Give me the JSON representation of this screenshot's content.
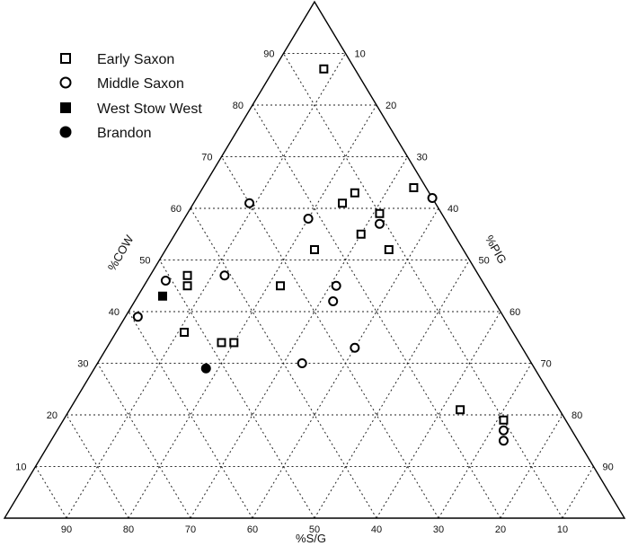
{
  "chart_data": {
    "type": "scatter",
    "subtype": "ternary",
    "axes": {
      "left": {
        "label": "%COW",
        "ticks": [
          10,
          20,
          30,
          40,
          50,
          60,
          70,
          80,
          90
        ]
      },
      "right": {
        "label": "%PIG",
        "ticks": [
          10,
          20,
          30,
          40,
          50,
          60,
          70,
          80,
          90
        ]
      },
      "bottom": {
        "label": "%S/G",
        "ticks": [
          90,
          80,
          70,
          60,
          50,
          40,
          30,
          20,
          10
        ]
      }
    },
    "grid": true,
    "legend_position": "top-left",
    "series": [
      {
        "name": "Early Saxon",
        "marker": "open-square",
        "points": [
          {
            "cow": 87,
            "pig": 8,
            "sg": 5
          },
          {
            "cow": 63,
            "pig": 25,
            "sg": 12
          },
          {
            "cow": 64,
            "pig": 34,
            "sg": 2
          },
          {
            "cow": 61,
            "pig": 24,
            "sg": 15
          },
          {
            "cow": 59,
            "pig": 31,
            "sg": 10
          },
          {
            "cow": 55,
            "pig": 30,
            "sg": 15
          },
          {
            "cow": 52,
            "pig": 24,
            "sg": 24
          },
          {
            "cow": 52,
            "pig": 36,
            "sg": 12
          },
          {
            "cow": 47,
            "pig": 6,
            "sg": 47
          },
          {
            "cow": 45,
            "pig": 7,
            "sg": 48
          },
          {
            "cow": 45,
            "pig": 22,
            "sg": 33
          },
          {
            "cow": 36,
            "pig": 11,
            "sg": 53
          },
          {
            "cow": 34,
            "pig": 18,
            "sg": 48
          },
          {
            "cow": 34,
            "pig": 20,
            "sg": 46
          },
          {
            "cow": 21,
            "pig": 63,
            "sg": 16
          },
          {
            "cow": 19,
            "pig": 71,
            "sg": 10
          }
        ]
      },
      {
        "name": "Middle Saxon",
        "marker": "open-circle",
        "points": [
          {
            "cow": 62,
            "pig": 38,
            "sg": 0
          },
          {
            "cow": 61,
            "pig": 9,
            "sg": 30
          },
          {
            "cow": 58,
            "pig": 20,
            "sg": 22
          },
          {
            "cow": 57,
            "pig": 32,
            "sg": 11
          },
          {
            "cow": 47,
            "pig": 12,
            "sg": 41
          },
          {
            "cow": 46,
            "pig": 3,
            "sg": 51
          },
          {
            "cow": 45,
            "pig": 31,
            "sg": 24
          },
          {
            "cow": 42,
            "pig": 32,
            "sg": 26
          },
          {
            "cow": 39,
            "pig": 2,
            "sg": 59
          },
          {
            "cow": 33,
            "pig": 40,
            "sg": 27
          },
          {
            "cow": 30,
            "pig": 33,
            "sg": 37
          },
          {
            "cow": 17,
            "pig": 72,
            "sg": 11
          },
          {
            "cow": 15,
            "pig": 73,
            "sg": 12
          }
        ]
      },
      {
        "name": "West Stow West",
        "marker": "filled-square",
        "points": [
          {
            "cow": 43,
            "pig": 4,
            "sg": 53
          }
        ]
      },
      {
        "name": "Brandon",
        "marker": "filled-circle",
        "points": [
          {
            "cow": 29,
            "pig": 18,
            "sg": 53
          }
        ]
      }
    ]
  }
}
